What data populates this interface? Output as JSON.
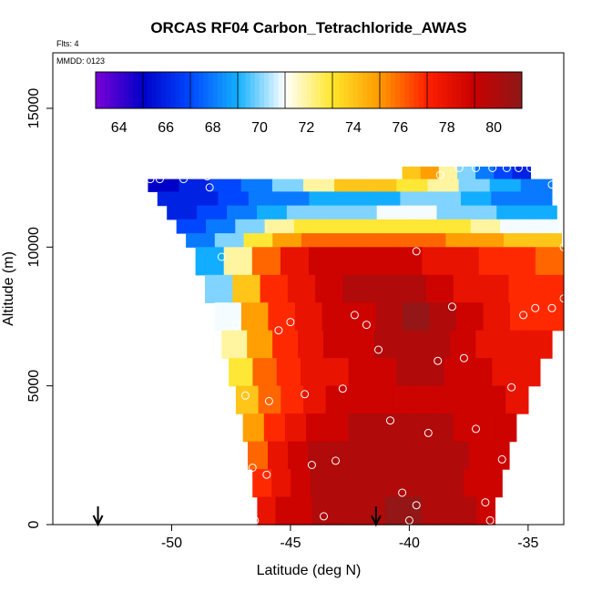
{
  "chart_data": {
    "type": "heatmap",
    "title": "ORCAS RF04 Carbon_Tetrachloride_AWAS",
    "flights_label": "Flts: 4",
    "date_label": "MMDD: 0123",
    "xlabel": "Latitude (deg N)",
    "ylabel": "Altitude (m)",
    "xlim": [
      -55,
      -33.5
    ],
    "ylim": [
      0,
      17000
    ],
    "x_ticks": [
      -50,
      -45,
      -40,
      -35
    ],
    "x_tick_labels": [
      "-50",
      "-45",
      "-40",
      "-35"
    ],
    "y_ticks": [
      0,
      5000,
      10000,
      15000
    ],
    "y_tick_labels": [
      "0",
      "5000",
      "10000",
      "15000"
    ],
    "colorbar": {
      "min": 63,
      "max": 81.2,
      "ticks": [
        64,
        66,
        68,
        70,
        72,
        74,
        76,
        78,
        80
      ],
      "tick_labels": [
        "64",
        "66",
        "68",
        "70",
        "72",
        "74",
        "76",
        "78",
        "80"
      ],
      "colors": [
        "#7b00d6",
        "#0000c8",
        "#0048ff",
        "#13b0ff",
        "#ffffff",
        "#ffe62a",
        "#ff9a00",
        "#ff2000",
        "#c80000",
        "#8e1818"
      ]
    },
    "field_rows": [
      {
        "alt": 12900,
        "lat0": -40.3,
        "lat1": -34.9,
        "values": [
          74,
          75,
          72,
          70,
          68,
          67,
          66
        ]
      },
      {
        "alt": 12450,
        "lat0": -51.0,
        "lat1": -34.0,
        "values": [
          65,
          66,
          67,
          68,
          70,
          72,
          74,
          74,
          73,
          72,
          70,
          69,
          68
        ]
      },
      {
        "alt": 12000,
        "lat0": -50.6,
        "lat1": -34.0,
        "values": [
          66,
          66,
          67,
          68,
          68,
          69,
          69,
          69,
          70,
          70,
          69,
          68,
          68
        ]
      },
      {
        "alt": 11500,
        "lat0": -50.2,
        "lat1": -33.8,
        "values": [
          66,
          67,
          68,
          69,
          70,
          70,
          70,
          71,
          71,
          70,
          70,
          69,
          69
        ]
      },
      {
        "alt": 11000,
        "lat0": -49.8,
        "lat1": -33.7,
        "values": [
          67,
          68,
          70,
          72,
          73,
          73,
          73,
          73,
          73,
          73,
          72,
          71,
          71
        ]
      },
      {
        "alt": 10500,
        "lat0": -49.4,
        "lat1": -33.6,
        "values": [
          68,
          70,
          73,
          75,
          76,
          76,
          76,
          76,
          76,
          75,
          75,
          74,
          74
        ]
      },
      {
        "alt": 10000,
        "lat0": -49.0,
        "lat1": -33.5,
        "values": [
          69,
          72,
          76,
          78,
          79,
          79,
          79,
          79,
          78,
          78,
          77,
          77,
          76
        ]
      },
      {
        "alt": 9000,
        "lat0": -48.6,
        "lat1": -33.5,
        "values": [
          70,
          74,
          77,
          78,
          79,
          80,
          80,
          80,
          79,
          78,
          78,
          77,
          77
        ]
      },
      {
        "alt": 8000,
        "lat0": -48.2,
        "lat1": -33.5,
        "values": [
          71,
          75,
          77,
          78,
          79,
          79,
          80,
          81,
          80,
          79,
          78,
          77,
          77
        ]
      },
      {
        "alt": 7000,
        "lat0": -47.9,
        "lat1": -34.0,
        "values": [
          72,
          75,
          77,
          78,
          79,
          79,
          80,
          80,
          80,
          79,
          78,
          78,
          78
        ]
      },
      {
        "alt": 6000,
        "lat0": -47.6,
        "lat1": -34.5,
        "values": [
          73,
          76,
          77,
          78,
          78,
          79,
          79,
          80,
          80,
          79,
          79,
          78,
          78
        ]
      },
      {
        "alt": 5000,
        "lat0": -47.3,
        "lat1": -35.0,
        "values": [
          74,
          76,
          77,
          78,
          79,
          79,
          79,
          79,
          79,
          79,
          79,
          79,
          78
        ]
      },
      {
        "alt": 4000,
        "lat0": -47.0,
        "lat1": -35.5,
        "values": [
          75,
          77,
          78,
          79,
          79,
          80,
          80,
          80,
          80,
          80,
          79,
          79,
          79
        ]
      },
      {
        "alt": 3000,
        "lat0": -46.8,
        "lat1": -35.8,
        "values": [
          76,
          78,
          79,
          80,
          80,
          80,
          80,
          80,
          80,
          80,
          80,
          79,
          79
        ]
      },
      {
        "alt": 2000,
        "lat0": -46.6,
        "lat1": -36.1,
        "values": [
          77,
          78,
          79,
          80,
          80,
          80,
          80,
          80,
          80,
          80,
          80,
          79,
          79
        ]
      },
      {
        "alt": 1000,
        "lat0": -46.4,
        "lat1": -36.4,
        "values": [
          78,
          79,
          79,
          80,
          80,
          80,
          80,
          81,
          81,
          80,
          80,
          80,
          79
        ]
      },
      {
        "alt": 0,
        "lat0": -46.4,
        "lat1": -36.6,
        "values": [
          78,
          79,
          80,
          80,
          80,
          81,
          81,
          81,
          81,
          80,
          80,
          80,
          79
        ]
      }
    ],
    "samples": [
      {
        "lat": -50.9,
        "alt": 12450
      },
      {
        "lat": -50.5,
        "alt": 12450
      },
      {
        "lat": -49.5,
        "alt": 12450
      },
      {
        "lat": -48.5,
        "alt": 12550
      },
      {
        "lat": -48.4,
        "alt": 12150
      },
      {
        "lat": -38.7,
        "alt": 12600
      },
      {
        "lat": -37.9,
        "alt": 12850
      },
      {
        "lat": -37.2,
        "alt": 12850
      },
      {
        "lat": -36.5,
        "alt": 12850
      },
      {
        "lat": -35.9,
        "alt": 12850
      },
      {
        "lat": -35.4,
        "alt": 12850
      },
      {
        "lat": -34.9,
        "alt": 12850
      },
      {
        "lat": -34.0,
        "alt": 12250
      },
      {
        "lat": -47.9,
        "alt": 9650
      },
      {
        "lat": -39.7,
        "alt": 9850
      },
      {
        "lat": -33.5,
        "alt": 10000
      },
      {
        "lat": -47.3,
        "alt": 7200
      },
      {
        "lat": -45.5,
        "alt": 7000
      },
      {
        "lat": -45.0,
        "alt": 7300
      },
      {
        "lat": -42.3,
        "alt": 7550
      },
      {
        "lat": -41.8,
        "alt": 7200
      },
      {
        "lat": -41.3,
        "alt": 6300
      },
      {
        "lat": -38.2,
        "alt": 7850
      },
      {
        "lat": -35.2,
        "alt": 7550
      },
      {
        "lat": -34.7,
        "alt": 7800
      },
      {
        "lat": -34.0,
        "alt": 7800
      },
      {
        "lat": -33.5,
        "alt": 8150
      },
      {
        "lat": -38.8,
        "alt": 5900
      },
      {
        "lat": -37.7,
        "alt": 6000
      },
      {
        "lat": -46.9,
        "alt": 4650
      },
      {
        "lat": -45.9,
        "alt": 4450
      },
      {
        "lat": -44.4,
        "alt": 4700
      },
      {
        "lat": -42.8,
        "alt": 4900
      },
      {
        "lat": -35.7,
        "alt": 4950
      },
      {
        "lat": -40.8,
        "alt": 3750
      },
      {
        "lat": -39.2,
        "alt": 3300
      },
      {
        "lat": -37.2,
        "alt": 3450
      },
      {
        "lat": -46.6,
        "alt": 2050
      },
      {
        "lat": -46.0,
        "alt": 1800
      },
      {
        "lat": -44.1,
        "alt": 2150
      },
      {
        "lat": -43.1,
        "alt": 2300
      },
      {
        "lat": -36.1,
        "alt": 2350
      },
      {
        "lat": -40.3,
        "alt": 1150
      },
      {
        "lat": -39.7,
        "alt": 700
      },
      {
        "lat": -36.8,
        "alt": 800
      },
      {
        "lat": -46.5,
        "alt": 150
      },
      {
        "lat": -43.6,
        "alt": 300
      },
      {
        "lat": -40.0,
        "alt": 150
      },
      {
        "lat": -36.6,
        "alt": 150
      }
    ],
    "arrows": [
      -53.1,
      -41.4
    ]
  }
}
